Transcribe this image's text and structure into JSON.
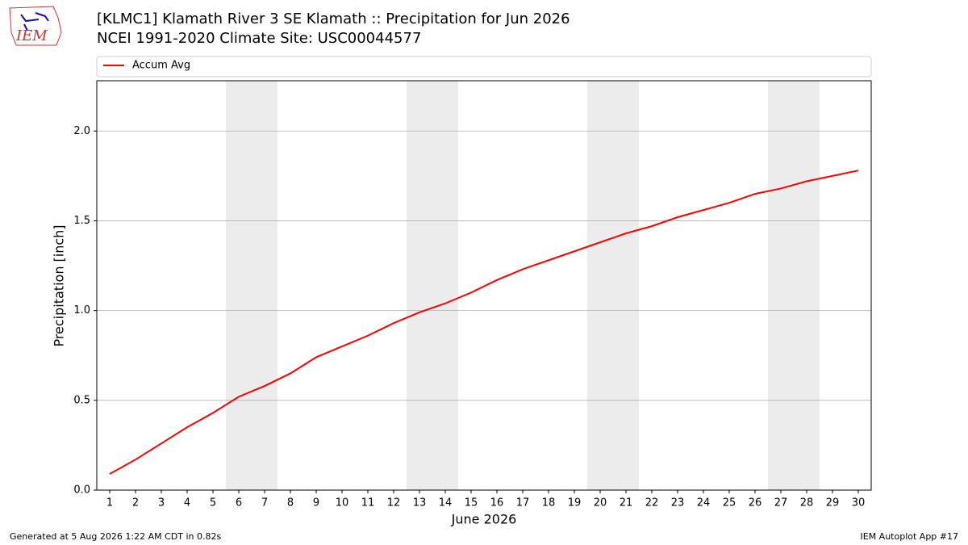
{
  "logo": "IEM",
  "footer": {
    "left": "Generated at 5 Aug 2026 1:22 AM CDT in 0.82s",
    "right": "IEM Autoplot App #17"
  },
  "chart_data": {
    "type": "line",
    "title": "[KLMC1] Klamath River 3 SE Klamath :: Precipitation for Jun 2026",
    "subtitle": "NCEI 1991-2020 Climate Site: USC00044577",
    "x_label": "June 2026",
    "y_label": "Precipitation [inch]",
    "x": [
      1,
      2,
      3,
      4,
      5,
      6,
      7,
      8,
      9,
      10,
      11,
      12,
      13,
      14,
      15,
      16,
      17,
      18,
      19,
      20,
      21,
      22,
      23,
      24,
      25,
      26,
      27,
      28,
      29,
      30
    ],
    "series": [
      {
        "name": "Accum Avg",
        "color": "#ff0000",
        "values": [
          0.09,
          0.17,
          0.26,
          0.35,
          0.43,
          0.52,
          0.58,
          0.65,
          0.74,
          0.8,
          0.86,
          0.93,
          0.99,
          1.04,
          1.1,
          1.17,
          1.23,
          1.28,
          1.33,
          1.38,
          1.43,
          1.47,
          1.52,
          1.56,
          1.6,
          1.65,
          1.68,
          1.72,
          1.75,
          1.78
        ]
      }
    ],
    "xlim": [
      0.5,
      30.5
    ],
    "ylim": [
      0,
      2.28
    ],
    "xticks": [
      1,
      2,
      3,
      4,
      5,
      6,
      7,
      8,
      9,
      10,
      11,
      12,
      13,
      14,
      15,
      16,
      17,
      18,
      19,
      20,
      21,
      22,
      23,
      24,
      25,
      26,
      27,
      28,
      29,
      30
    ],
    "yticks": [
      {
        "value": 0,
        "label": "0.0"
      },
      {
        "value": 0.5,
        "label": "0.5"
      },
      {
        "value": 1,
        "label": "1.0"
      },
      {
        "value": 1.5,
        "label": "1.5"
      },
      {
        "value": 2,
        "label": "2.0"
      }
    ],
    "weekend_spans": [
      [
        5.5,
        7.5
      ],
      [
        12.5,
        14.5
      ],
      [
        19.5,
        21.5
      ],
      [
        26.5,
        28.5
      ]
    ],
    "weekend_color": "#ececec",
    "grid": true,
    "grid_color": "#b0b0b0",
    "legend": "top"
  }
}
